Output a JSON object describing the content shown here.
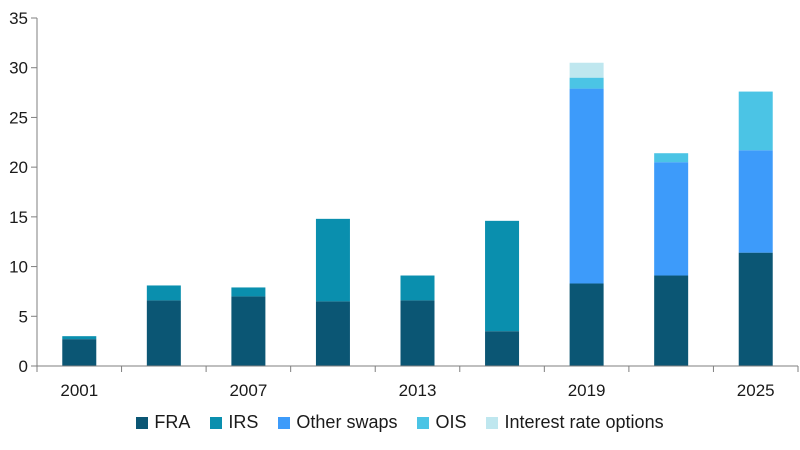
{
  "chart_data": {
    "type": "bar",
    "stacked": true,
    "categories": [
      "2001",
      "2004",
      "2007",
      "2010",
      "2013",
      "2016",
      "2019",
      "2022",
      "2025"
    ],
    "x_tick_labels": [
      "2001",
      "",
      "2007",
      "",
      "2013",
      "",
      "2019",
      "",
      "2025"
    ],
    "y_ticks": [
      "0",
      "5",
      "10",
      "15",
      "20",
      "25",
      "30",
      "35"
    ],
    "ylim": [
      0,
      35
    ],
    "grid": false,
    "legend_position": "bottom",
    "series": [
      {
        "name": "FRA",
        "color": "#0b5674",
        "values": [
          2.7,
          6.6,
          7.0,
          6.5,
          6.6,
          3.5,
          8.3,
          9.1,
          11.4
        ]
      },
      {
        "name": "IRS",
        "color": "#0a8fae",
        "values": [
          0.3,
          1.5,
          0.9,
          8.3,
          2.5,
          11.1,
          0.0,
          0.0,
          0.0
        ]
      },
      {
        "name": "Other swaps",
        "color": "#3d9bfa",
        "values": [
          0.0,
          0.0,
          0.0,
          0.0,
          0.0,
          0.0,
          19.6,
          11.4,
          10.3
        ]
      },
      {
        "name": "OIS",
        "color": "#4bc4e5",
        "values": [
          0.0,
          0.0,
          0.0,
          0.0,
          0.0,
          0.0,
          1.1,
          0.9,
          5.9
        ]
      },
      {
        "name": "Interest rate options",
        "color": "#bfe7ef",
        "values": [
          0.0,
          0.0,
          0.0,
          0.0,
          0.0,
          0.0,
          1.5,
          0.0,
          0.0
        ]
      }
    ]
  }
}
